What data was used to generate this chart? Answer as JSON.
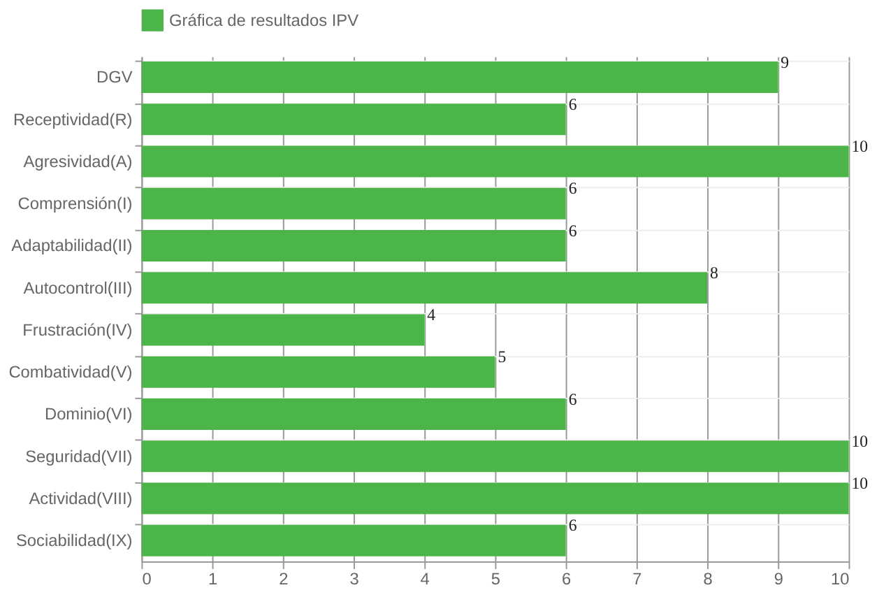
{
  "chart_data": {
    "type": "bar",
    "orientation": "horizontal",
    "categories": [
      "DGV",
      "Receptividad(R)",
      "Agresividad(A)",
      "Comprensión(I)",
      "Adaptabilidad(II)",
      "Autocontrol(III)",
      "Frustración(IV)",
      "Combatividad(V)",
      "Dominio(VI)",
      "Seguridad(VII)",
      "Actividad(VIII)",
      "Sociabilidad(IX)"
    ],
    "series": [
      {
        "name": "Gráfica de resultados IPV",
        "color": "#4cb54a",
        "values": [
          9,
          6,
          10,
          6,
          6,
          8,
          4,
          5,
          6,
          10,
          10,
          6
        ]
      }
    ],
    "xlim": [
      0,
      10
    ],
    "xticks": [
      0,
      1,
      2,
      3,
      4,
      5,
      6,
      7,
      8,
      9,
      10
    ],
    "grid": true,
    "legend": "top",
    "data_labels": true
  }
}
